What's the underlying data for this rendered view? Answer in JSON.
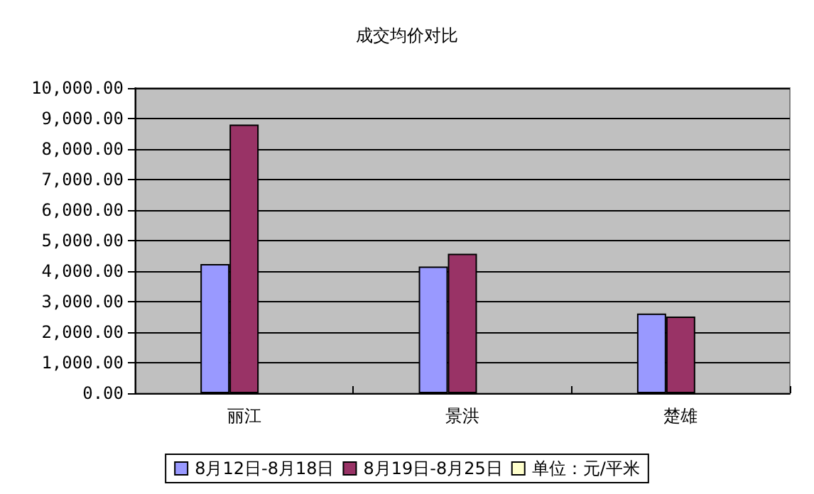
{
  "chart_data": {
    "type": "bar",
    "title": "成交均价对比",
    "categories": [
      "丽江",
      "景洪",
      "楚雄"
    ],
    "series": [
      {
        "name": "8月12日-8月18日",
        "color": "#9999ff",
        "values": [
          4230,
          4150,
          2610
        ]
      },
      {
        "name": "8月19日-8月25日",
        "color": "#993366",
        "values": [
          8800,
          4570,
          2510
        ]
      },
      {
        "name": "单位：元/平米",
        "color": "#ffffcc",
        "values": [
          null,
          null,
          null
        ]
      }
    ],
    "ylim": [
      0,
      10000
    ],
    "yticks": [
      {
        "value": 0,
        "label": "0.00"
      },
      {
        "value": 1000,
        "label": "1,000.00"
      },
      {
        "value": 2000,
        "label": "2,000.00"
      },
      {
        "value": 3000,
        "label": "3,000.00"
      },
      {
        "value": 4000,
        "label": "4,000.00"
      },
      {
        "value": 5000,
        "label": "5,000.00"
      },
      {
        "value": 6000,
        "label": "6,000.00"
      },
      {
        "value": 7000,
        "label": "7,000.00"
      },
      {
        "value": 8000,
        "label": "8,000.00"
      },
      {
        "value": 9000,
        "label": "9,000.00"
      },
      {
        "value": 10000,
        "label": "10,000.00"
      }
    ],
    "grid": "y",
    "legend": "bottom"
  }
}
